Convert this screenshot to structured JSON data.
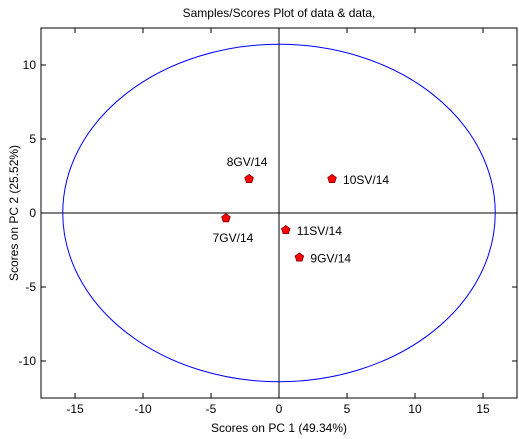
{
  "chart_data": {
    "type": "scatter",
    "title": "Samples/Scores Plot of data & data,",
    "xlabel": "Scores on PC 1 (49.34%)",
    "ylabel": "Scores on PC 2 (25.52%)",
    "xlim": [
      -17.5,
      17.5
    ],
    "ylim": [
      -12.5,
      12.5
    ],
    "xticks": [
      -15,
      -10,
      -5,
      0,
      5,
      10,
      15
    ],
    "yticks": [
      -10,
      -5,
      0,
      5,
      10
    ],
    "grid": false,
    "points": [
      {
        "label": "8GV/14",
        "x": -2.2,
        "y": 2.3,
        "label_pos": "above"
      },
      {
        "label": "10SV/14",
        "x": 3.9,
        "y": 2.3,
        "label_pos": "right"
      },
      {
        "label": "7GV/14",
        "x": -3.9,
        "y": -0.35,
        "label_pos": "below"
      },
      {
        "label": "11SV/14",
        "x": 0.5,
        "y": -1.15,
        "label_pos": "right"
      },
      {
        "label": "9GV/14",
        "x": 1.5,
        "y": -3.0,
        "label_pos": "right"
      }
    ],
    "ellipse": {
      "cx": 0,
      "cy": 0,
      "rx": 15.9,
      "ry": 11.4
    },
    "colors": {
      "points": "#ff0000",
      "point_edge": "#800000",
      "ellipse": "#0000ff",
      "axes": "#000000"
    }
  }
}
